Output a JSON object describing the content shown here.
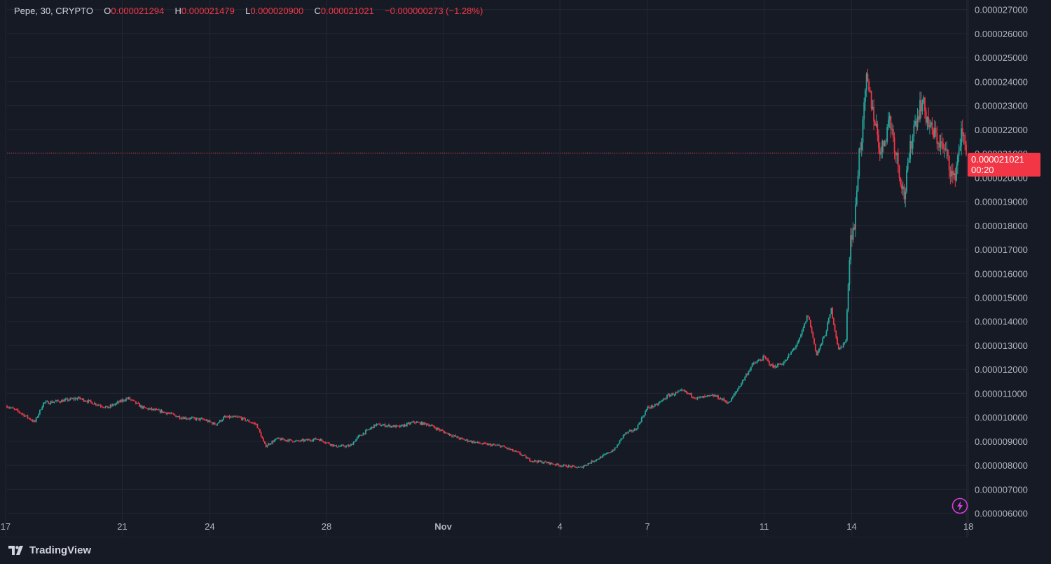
{
  "legend": {
    "symbol": "Pepe, 30, CRYPTO",
    "open_label": "O",
    "open": "0.000021294",
    "high_label": "H",
    "high": "0.000021479",
    "low_label": "L",
    "low": "0.000020900",
    "close_label": "C",
    "close": "0.000021021",
    "change": "−0.000000273 (−1.28%)"
  },
  "price_tag": {
    "price": "0.000021021",
    "countdown": "00:20"
  },
  "branding": {
    "name": "TradingView"
  },
  "colors": {
    "background": "#161a25",
    "grid": "#232733",
    "up": "#26a69a",
    "down": "#f23645",
    "text": "#d1d4dc",
    "axis_text": "#b2b5be",
    "bolt": "#d63dd8"
  },
  "icons": {
    "logo": "tradingview-logo-icon",
    "bolt": "lightning-bolt-icon"
  },
  "chart_data": {
    "type": "candlestick",
    "title": "",
    "ylim": [
      5.9e-06,
      2.74e-05
    ],
    "y_tick_values": [
      6e-06,
      7e-06,
      8e-06,
      9e-06,
      1e-05,
      1.1e-05,
      1.2e-05,
      1.3e-05,
      1.4e-05,
      1.5e-05,
      1.6e-05,
      1.7e-05,
      1.8e-05,
      1.9e-05,
      2e-05,
      2.1e-05,
      2.2e-05,
      2.3e-05,
      2.4e-05,
      2.5e-05,
      2.6e-05,
      2.7e-05
    ],
    "y_tick_labels": [
      "0.000006000",
      "0.000007000",
      "0.000008000",
      "0.000009000",
      "0.000010000",
      "0.000011000",
      "0.000012000",
      "0.000013000",
      "0.000014000",
      "0.000015000",
      "0.000016000",
      "0.000017000",
      "0.000018000",
      "0.000019000",
      "0.000020000",
      "0.000021000",
      "0.000022000",
      "0.000023000",
      "0.000024000",
      "0.000025000",
      "0.000026000",
      "0.000027000"
    ],
    "x_ticks": [
      {
        "day": 17,
        "label": "17"
      },
      {
        "day": 21,
        "label": "21"
      },
      {
        "day": 24,
        "label": "24"
      },
      {
        "day": 28,
        "label": "28"
      },
      {
        "day": 32,
        "label": "Nov"
      },
      {
        "day": 36,
        "label": "4"
      },
      {
        "day": 39,
        "label": "7"
      },
      {
        "day": 43,
        "label": "11"
      },
      {
        "day": 46,
        "label": "14"
      },
      {
        "day": 50,
        "label": "18"
      }
    ],
    "xlim": [
      17.05,
      49.95
    ],
    "price_line": 2.1021e-05,
    "series": [
      {
        "points": [
          [
            17.0,
            1.05e-05
          ],
          [
            17.5,
            1.02e-05
          ],
          [
            18.0,
            9.8e-06
          ],
          [
            18.3,
            1.06e-05
          ],
          [
            19.0,
            1.07e-05
          ],
          [
            19.5,
            1.08e-05
          ],
          [
            20.0,
            1.06e-05
          ],
          [
            20.5,
            1.04e-05
          ],
          [
            21.0,
            1.07e-05
          ],
          [
            21.2,
            1.08e-05
          ],
          [
            21.7,
            1.04e-05
          ],
          [
            22.5,
            1.02e-05
          ],
          [
            23.0,
            1e-05
          ],
          [
            23.8,
            9.9e-06
          ],
          [
            24.2,
            9.7e-06
          ],
          [
            24.5,
            1e-05
          ],
          [
            25.0,
            1e-05
          ],
          [
            25.6,
            9.7e-06
          ],
          [
            25.9,
            8.8e-06
          ],
          [
            26.3,
            9.1e-06
          ],
          [
            27.0,
            9e-06
          ],
          [
            27.7,
            9.1e-06
          ],
          [
            28.3,
            8.8e-06
          ],
          [
            28.8,
            8.8e-06
          ],
          [
            29.1,
            9.2e-06
          ],
          [
            29.7,
            9.7e-06
          ],
          [
            30.5,
            9.6e-06
          ],
          [
            31.0,
            9.8e-06
          ],
          [
            31.5,
            9.7e-06
          ],
          [
            32.0,
            9.4e-06
          ],
          [
            32.6,
            9.1e-06
          ],
          [
            33.3,
            8.9e-06
          ],
          [
            34.0,
            8.8e-06
          ],
          [
            34.6,
            8.5e-06
          ],
          [
            35.0,
            8.2e-06
          ],
          [
            35.6,
            8.1e-06
          ],
          [
            36.0,
            8e-06
          ],
          [
            36.7,
            7.9e-06
          ],
          [
            37.0,
            8.1e-06
          ],
          [
            37.5,
            8.4e-06
          ],
          [
            37.9,
            8.7e-06
          ],
          [
            38.2,
            9.3e-06
          ],
          [
            38.6,
            9.5e-06
          ],
          [
            39.0,
            1.04e-05
          ],
          [
            39.3,
            1.05e-05
          ],
          [
            39.7,
            1.09e-05
          ],
          [
            40.2,
            1.11e-05
          ],
          [
            40.7,
            1.08e-05
          ],
          [
            41.3,
            1.09e-05
          ],
          [
            41.8,
            1.06e-05
          ],
          [
            42.1,
            1.12e-05
          ],
          [
            42.6,
            1.22e-05
          ],
          [
            43.0,
            1.25e-05
          ],
          [
            43.3,
            1.21e-05
          ],
          [
            43.7,
            1.23e-05
          ],
          [
            44.2,
            1.32e-05
          ],
          [
            44.5,
            1.43e-05
          ],
          [
            44.8,
            1.26e-05
          ],
          [
            45.1,
            1.35e-05
          ],
          [
            45.3,
            1.45e-05
          ],
          [
            45.55,
            1.28e-05
          ],
          [
            45.8,
            1.32e-05
          ],
          [
            45.95,
            1.75e-05
          ],
          [
            46.1,
            1.8e-05
          ],
          [
            46.25,
            2.1e-05
          ],
          [
            46.38,
            2.2e-05
          ],
          [
            46.5,
            2.4e-05
          ],
          [
            46.7,
            2.3e-05
          ],
          [
            47.0,
            2.1e-05
          ],
          [
            47.3,
            2.25e-05
          ],
          [
            47.6,
            2.05e-05
          ],
          [
            47.8,
            1.92e-05
          ],
          [
            48.1,
            2.2e-05
          ],
          [
            48.4,
            2.32e-05
          ],
          [
            48.7,
            2.2e-05
          ],
          [
            49.0,
            2.15e-05
          ],
          [
            49.3,
            2.08e-05
          ],
          [
            49.5,
            1.98e-05
          ],
          [
            49.75,
            2.18e-05
          ],
          [
            49.95,
            2.12e-05
          ]
        ]
      }
    ]
  }
}
